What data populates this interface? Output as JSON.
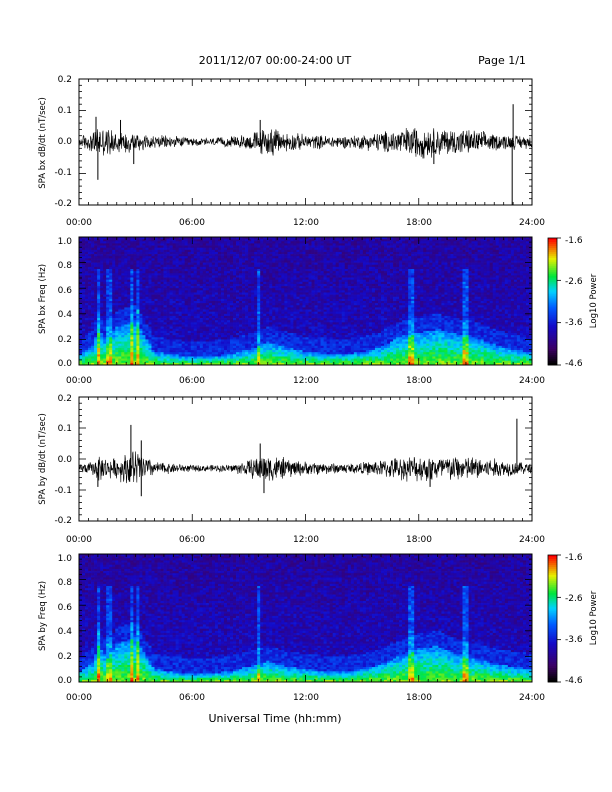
{
  "header": {
    "title": "2011/12/07  00:00-24:00 UT",
    "page": "Page 1/1"
  },
  "xlabel": "Universal Time (hh:mm)",
  "x_ticks": [
    "00:00",
    "06:00",
    "12:00",
    "18:00",
    "24:00"
  ],
  "chart_data": [
    {
      "type": "line",
      "ylabel": "SPA bx dB/dt (nT/sec)",
      "xlim_hours": [
        0,
        24
      ],
      "ylim": [
        -0.2,
        0.2
      ],
      "y_ticks": [
        "0.2",
        "0.1",
        "0.0",
        "-0.1",
        "-0.2"
      ],
      "baseline": 0.0,
      "envelope": {
        "hours": [
          0,
          0.7,
          1,
          1.5,
          2,
          3,
          4,
          5,
          6,
          7,
          8,
          9,
          9.5,
          10,
          11,
          12,
          13,
          14,
          15,
          16,
          17,
          18,
          19,
          20,
          21,
          22,
          23,
          24
        ],
        "amplitude": [
          0.018,
          0.03,
          0.05,
          0.04,
          0.035,
          0.03,
          0.02,
          0.018,
          0.012,
          0.012,
          0.015,
          0.025,
          0.035,
          0.045,
          0.03,
          0.022,
          0.02,
          0.018,
          0.022,
          0.03,
          0.04,
          0.05,
          0.042,
          0.04,
          0.035,
          0.025,
          0.022,
          0.018
        ]
      },
      "spikes": [
        {
          "hour": 1.0,
          "value": -0.12
        },
        {
          "hour": 0.9,
          "value": 0.08
        },
        {
          "hour": 2.2,
          "value": 0.07
        },
        {
          "hour": 2.9,
          "value": -0.07
        },
        {
          "hour": 9.6,
          "value": 0.07
        },
        {
          "hour": 18.8,
          "value": -0.07
        },
        {
          "hour": 23.0,
          "value": 0.12
        },
        {
          "hour": 22.95,
          "value": -0.2
        }
      ]
    },
    {
      "type": "heatmap",
      "ylabel": "SPA bx Freq (Hz)",
      "xlim_hours": [
        0,
        24
      ],
      "ylim": [
        0.0,
        1.0
      ],
      "y_ticks": [
        "1.0",
        "0.8",
        "0.6",
        "0.4",
        "0.2",
        "0.0"
      ],
      "colorbar": {
        "label": "Log10 Power",
        "min": -4.6,
        "max": -1.6,
        "ticks": [
          "-1.6",
          "-2.6",
          "-3.6",
          "-4.6"
        ]
      },
      "low_freq_activity": {
        "hours": [
          0,
          0.8,
          1.0,
          1.5,
          2,
          3,
          4,
          6,
          8,
          9,
          10,
          11,
          12,
          13,
          14,
          15,
          16,
          17,
          18,
          19,
          20,
          21,
          22,
          23,
          24
        ],
        "top_hz": [
          0.08,
          0.15,
          0.3,
          0.18,
          0.3,
          0.35,
          0.1,
          0.06,
          0.08,
          0.12,
          0.18,
          0.14,
          0.1,
          0.09,
          0.08,
          0.1,
          0.14,
          0.22,
          0.25,
          0.28,
          0.24,
          0.22,
          0.16,
          0.12,
          0.1
        ]
      }
    },
    {
      "type": "line",
      "ylabel": "SPA by dB/dt (nT/sec)",
      "xlim_hours": [
        0,
        24
      ],
      "ylim": [
        -0.2,
        0.2
      ],
      "y_ticks": [
        "0.2",
        "0.1",
        "0.0",
        "-0.1",
        "-0.2"
      ],
      "baseline": -0.03,
      "envelope": {
        "hours": [
          0,
          0.7,
          1,
          1.5,
          2,
          2.5,
          3,
          3.5,
          4,
          5,
          6,
          7,
          8,
          9,
          9.5,
          10,
          11,
          12,
          13,
          14,
          15,
          16,
          17,
          18,
          19,
          20,
          21,
          22,
          23,
          24
        ],
        "amplitude": [
          0.012,
          0.02,
          0.04,
          0.03,
          0.03,
          0.05,
          0.06,
          0.04,
          0.02,
          0.015,
          0.01,
          0.01,
          0.012,
          0.025,
          0.04,
          0.045,
          0.03,
          0.02,
          0.018,
          0.015,
          0.018,
          0.025,
          0.035,
          0.04,
          0.04,
          0.04,
          0.035,
          0.03,
          0.022,
          0.015
        ]
      },
      "spikes": [
        {
          "hour": 2.75,
          "value": 0.11
        },
        {
          "hour": 3.3,
          "value": 0.06
        },
        {
          "hour": 3.3,
          "value": -0.12
        },
        {
          "hour": 1.0,
          "value": -0.09
        },
        {
          "hour": 9.6,
          "value": 0.05
        },
        {
          "hour": 9.8,
          "value": -0.11
        },
        {
          "hour": 18.6,
          "value": -0.09
        },
        {
          "hour": 23.2,
          "value": 0.13
        }
      ]
    },
    {
      "type": "heatmap",
      "ylabel": "SPA by Freq (Hz)",
      "xlim_hours": [
        0,
        24
      ],
      "ylim": [
        0.0,
        1.0
      ],
      "y_ticks": [
        "1.0",
        "0.8",
        "0.6",
        "0.4",
        "0.2",
        "0.0"
      ],
      "colorbar": {
        "label": "Log10 Power",
        "min": -4.6,
        "max": -1.6,
        "ticks": [
          "-1.6",
          "-2.6",
          "-3.6",
          "-4.6"
        ]
      },
      "low_freq_activity": {
        "hours": [
          0,
          0.8,
          1.0,
          1.5,
          2,
          3,
          4,
          6,
          8,
          9,
          10,
          11,
          12,
          13,
          14,
          15,
          16,
          17,
          18,
          19,
          20,
          21,
          22,
          23,
          24
        ],
        "top_hz": [
          0.08,
          0.15,
          0.3,
          0.18,
          0.3,
          0.35,
          0.1,
          0.06,
          0.08,
          0.12,
          0.16,
          0.12,
          0.1,
          0.08,
          0.08,
          0.1,
          0.14,
          0.2,
          0.26,
          0.28,
          0.22,
          0.18,
          0.14,
          0.12,
          0.1
        ]
      }
    }
  ]
}
